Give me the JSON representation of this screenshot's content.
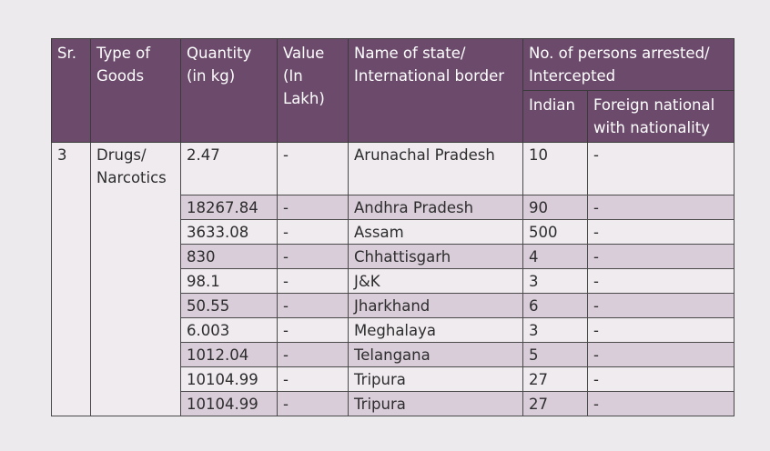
{
  "table": {
    "header": {
      "top": [
        "Sr.",
        "Type of Goods",
        "Quantity (in kg)",
        "Value (In Lakh)",
        "Name of state/ International border",
        "No. of persons arrested/ Intercepted"
      ],
      "sub": [
        "Indian",
        "Foreign national with nationality"
      ]
    },
    "sr": "3",
    "type": "Drugs/ Narcotics",
    "rows": [
      [
        "2.47",
        "-",
        "Arunachal Pradesh",
        "10",
        "-"
      ],
      [
        "18267.84",
        "-",
        "Andhra Pradesh",
        "90",
        "-"
      ],
      [
        "3633.08",
        "-",
        "Assam",
        "500",
        "-"
      ],
      [
        "830",
        "-",
        "Chhattisgarh",
        "4",
        "-"
      ],
      [
        "98.1",
        "-",
        "J&K",
        "3",
        "-"
      ],
      [
        "50.55",
        "-",
        "Jharkhand",
        "6",
        "-"
      ],
      [
        "6.003",
        "-",
        "Meghalaya",
        "3",
        "-"
      ],
      [
        "1012.04",
        "-",
        "Telangana",
        "5",
        "-"
      ],
      [
        "10104.99",
        "-",
        "Tripura",
        "27",
        "-"
      ],
      [
        "10104.99",
        "-",
        "Tripura",
        "27",
        "-"
      ]
    ]
  }
}
